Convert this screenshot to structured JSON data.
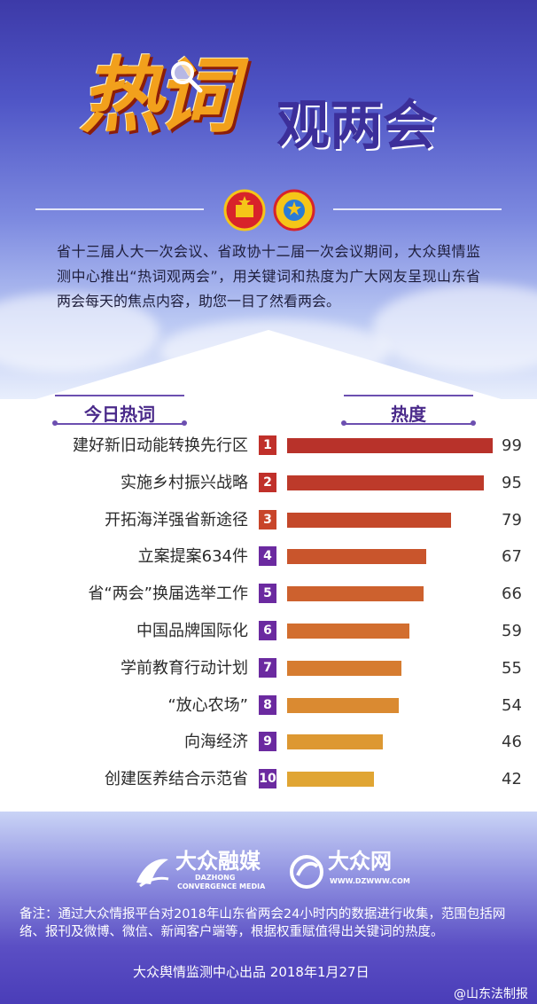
{
  "header": {
    "title_hot": "热词",
    "title_rest": "观两会",
    "intro": "省十三届人大一次会议、省政协十二届一次会议期间，大众舆情监测中心推出“热词观两会”，用关键词和热度为广大网友呈现山东省两会每天的焦点内容，助您一目了然看两会。"
  },
  "chart_data": {
    "type": "bar",
    "orientation": "horizontal",
    "col_keyword": "今日热词",
    "col_heat": "热度",
    "categories": [
      "建好新旧动能转换先行区",
      "实施乡村振兴战略",
      "开拓海洋强省新途径",
      "立案提案634件",
      "省“两会”换届选举工作",
      "中国品牌国际化",
      "学前教育行动计划",
      "“放心农场”",
      "向海经济",
      "创建医养结合示范省"
    ],
    "ranks": [
      "1",
      "2",
      "3",
      "4",
      "5",
      "6",
      "7",
      "8",
      "9",
      "10"
    ],
    "values": [
      99,
      95,
      79,
      67,
      66,
      59,
      55,
      54,
      46,
      42
    ],
    "xlim": [
      0,
      100
    ],
    "bar_colors": [
      "#b8322a",
      "#bd3a2a",
      "#c4482a",
      "#c9552c",
      "#cd612e",
      "#d26e2f",
      "#d67c30",
      "#da8a31",
      "#dd9832",
      "#e0a533"
    ],
    "rank_colors": [
      "#c0302a",
      "#c0302a",
      "#c8452a",
      "#6b2aa0",
      "#6b2aa0",
      "#6b2aa0",
      "#6b2aa0",
      "#6b2aa0",
      "#6b2aa0",
      "#6b2aa0"
    ]
  },
  "footer": {
    "logo1_main": "大众融媒",
    "logo1_sub1": "DAZHONG",
    "logo1_sub2": "CONVERGENCE MEDIA",
    "logo2_main": "大众网",
    "logo2_sub": "WWW.DZWWW.COM",
    "note": "备注：通过大众情报平台对2018年山东省两会24小时内的数据进行收集，范围包括网络、报刊及微博、微信、新闻客户端等，根据权重赋值得出关键词的热度。",
    "source": "大众舆情监测中心出品 2018年1月27日",
    "weibo": "@山东法制报"
  }
}
